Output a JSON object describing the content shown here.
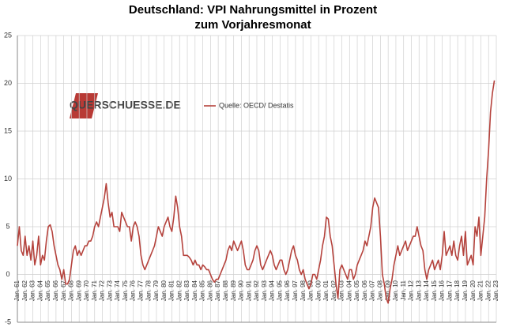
{
  "chart_data": {
    "type": "line",
    "title": "Deutschland: VPI Nahrungsmittel in Prozent",
    "subtitle": "zum Vorjahresmonat",
    "logo": "QUERSCHUESSE.DE",
    "categories": [
      "Jan. 61",
      null,
      null,
      null,
      "Jan. 62",
      null,
      null,
      null,
      "Jan. 63",
      null,
      null,
      null,
      "Jan. 64",
      null,
      null,
      null,
      "Jan. 65",
      null,
      null,
      null,
      "Jan. 66",
      null,
      null,
      null,
      "Jan. 67",
      null,
      null,
      null,
      "Jan. 68",
      null,
      null,
      null,
      "Jan. 69",
      null,
      null,
      null,
      "Jan. 70",
      null,
      null,
      null,
      "Jan. 71",
      null,
      null,
      null,
      "Jan. 72",
      null,
      null,
      null,
      "Jan. 73",
      null,
      null,
      null,
      "Jan. 74",
      null,
      null,
      null,
      "Jan. 75",
      null,
      null,
      null,
      "Jan. 76",
      null,
      null,
      null,
      "Jan. 77",
      null,
      null,
      null,
      "Jan. 78",
      null,
      null,
      null,
      "Jan. 79",
      null,
      null,
      null,
      "Jan. 80",
      null,
      null,
      null,
      "Jan. 81",
      null,
      null,
      null,
      "Jan. 82",
      null,
      null,
      null,
      "Jan. 83",
      null,
      null,
      null,
      "Jan. 84",
      null,
      null,
      null,
      "Jan. 85",
      null,
      null,
      null,
      "Jan. 86",
      null,
      null,
      null,
      "Jan. 87",
      null,
      null,
      null,
      "Jan. 88",
      null,
      null,
      null,
      "Jan. 89",
      null,
      null,
      null,
      "Jan. 90",
      null,
      null,
      null,
      "Jan. 91",
      null,
      null,
      null,
      "Jan. 92",
      null,
      null,
      null,
      "Jan. 93",
      null,
      null,
      null,
      "Jan. 94",
      null,
      null,
      null,
      "Jan. 95",
      null,
      null,
      null,
      "Jan. 96",
      null,
      null,
      null,
      "Jan. 97",
      null,
      null,
      null,
      "Jan. 98",
      null,
      null,
      null,
      "Jan. 99",
      null,
      null,
      null,
      "Jan. 00",
      null,
      null,
      null,
      "Jan. 01",
      null,
      null,
      null,
      "Jan. 02",
      null,
      null,
      null,
      "Jan. 03",
      null,
      null,
      null,
      "Jan. 04",
      null,
      null,
      null,
      "Jan. 05",
      null,
      null,
      null,
      "Jan. 06",
      null,
      null,
      null,
      "Jan. 07",
      null,
      null,
      null,
      "Jan. 08",
      null,
      null,
      null,
      "Jan. 09",
      null,
      null,
      null,
      "Jan. 10",
      null,
      null,
      null,
      "Jan. 11",
      null,
      null,
      null,
      "Jan. 12",
      null,
      null,
      null,
      "Jan. 13",
      null,
      null,
      null,
      "Jan. 14",
      null,
      null,
      null,
      "Jan. 15",
      null,
      null,
      null,
      "Jan. 16",
      null,
      null,
      null,
      "Jan. 17",
      null,
      null,
      null,
      "Jan. 18",
      null,
      null,
      null,
      "Jan. 19",
      null,
      null,
      null,
      "Jan. 20",
      null,
      null,
      null,
      "Jan. 21",
      null,
      null,
      null,
      "Jan. 22",
      null,
      null,
      null,
      "Jan. 23"
    ],
    "series": [
      {
        "name": "Quelle: OECD/ Destatis",
        "color": "#b5423c",
        "values": [
          3,
          5,
          2.5,
          2,
          4,
          2,
          3,
          1.5,
          3.5,
          1,
          2,
          4,
          1,
          2,
          1.5,
          3.5,
          5,
          5.2,
          4.5,
          3,
          2,
          1,
          0.5,
          -0.5,
          0.5,
          -1,
          -1,
          -0.5,
          1,
          2.5,
          3,
          2,
          2.5,
          2,
          2.5,
          3,
          3,
          3.5,
          3.5,
          4,
          5,
          5.5,
          5,
          6,
          7,
          8,
          9.5,
          7.5,
          6,
          6.5,
          5,
          5,
          5,
          4.5,
          6.5,
          6,
          5.5,
          5,
          5,
          3.5,
          5,
          5.5,
          5,
          4,
          2,
          1,
          0.5,
          1,
          1.5,
          2,
          2.5,
          3,
          4,
          5,
          4.5,
          4,
          5,
          5.5,
          6,
          5,
          4.5,
          6,
          8.2,
          7,
          5,
          4,
          2,
          2,
          2,
          1.8,
          1.5,
          1,
          1.5,
          1,
          1,
          0.5,
          1,
          0.8,
          0.5,
          0.5,
          0,
          -0.5,
          -0.8,
          -0.5,
          -0.5,
          0,
          0.5,
          1,
          1.5,
          2.5,
          3,
          2.5,
          3.5,
          3,
          2.5,
          3,
          3.5,
          2.5,
          1,
          0.5,
          0.5,
          1,
          1.5,
          2.5,
          3,
          2.5,
          1,
          0.5,
          1,
          1.5,
          2,
          2.5,
          2,
          1,
          0.5,
          1,
          1.5,
          1.5,
          0.5,
          0,
          0.5,
          1.5,
          2.5,
          3,
          2,
          1.5,
          0.5,
          0,
          0.5,
          -0.5,
          -1,
          -1.5,
          -1,
          0,
          0,
          -0.5,
          0.5,
          1.5,
          3,
          4,
          6,
          5.8,
          4,
          3,
          1,
          -1,
          -2.5,
          0.5,
          1,
          0.5,
          0,
          -0.5,
          0.5,
          0.5,
          -0.5,
          0,
          1,
          1.5,
          2,
          2.5,
          3.5,
          3,
          4,
          5,
          7,
          8,
          7.5,
          7,
          4,
          0,
          -1,
          -2.5,
          -3,
          -1.5,
          -0.5,
          1,
          2,
          3,
          2,
          2.5,
          3,
          3.5,
          2.5,
          3,
          3.5,
          4,
          4,
          5,
          4,
          3,
          2.5,
          0.5,
          -0.5,
          0.5,
          1,
          1.5,
          0.5,
          1,
          1.5,
          0.5,
          2,
          4.5,
          2,
          2.5,
          3,
          2,
          3.5,
          2,
          1.5,
          3,
          4,
          2,
          4.5,
          1,
          1.5,
          2,
          1,
          5,
          4,
          6,
          2,
          4,
          6,
          10,
          13,
          17,
          19,
          20.3,
          null
        ]
      }
    ],
    "ylim": [
      -5,
      25
    ],
    "yticks": [
      -5,
      0,
      5,
      10,
      15,
      20,
      25
    ],
    "grid": true
  }
}
